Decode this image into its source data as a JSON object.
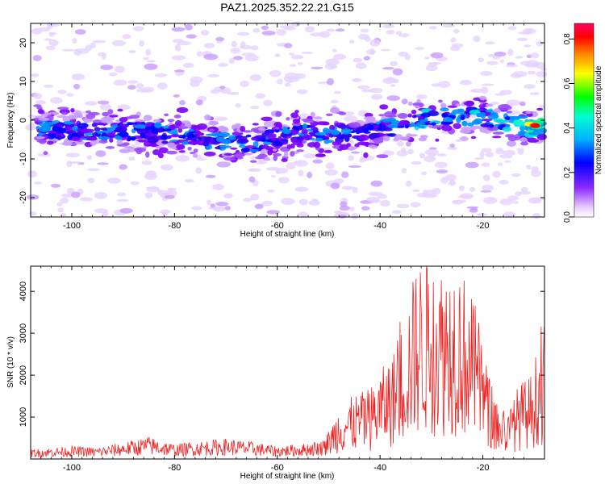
{
  "title": "PAZ1.2025.352.22.21.G15",
  "chart_data": [
    {
      "type": "heatmap",
      "xlabel": "Height of straight line (km)",
      "ylabel": "Frequency (Hz)",
      "xlim": [
        -108,
        -8
      ],
      "ylim": [
        -25,
        25
      ],
      "xticks": [
        -100,
        -80,
        -60,
        -40,
        -20
      ],
      "yticks": [
        -20,
        -10,
        0,
        10,
        20
      ],
      "colorbar": {
        "label": "Normalized spectral amplitude",
        "range": [
          0,
          0.87
        ],
        "ticks": [
          0.0,
          0.2,
          0.4,
          0.6,
          0.8
        ]
      },
      "ridge_description": "band of high amplitude near -2 Hz at low heights rising to about +2 Hz near -30 km, peak amplitude near -10 km",
      "ridge": [
        {
          "x": -106,
          "y": -2
        },
        {
          "x": -95,
          "y": -3
        },
        {
          "x": -85,
          "y": -3
        },
        {
          "x": -75,
          "y": -5
        },
        {
          "x": -65,
          "y": -6
        },
        {
          "x": -55,
          "y": -3
        },
        {
          "x": -45,
          "y": -4
        },
        {
          "x": -38,
          "y": -2
        },
        {
          "x": -30,
          "y": 1
        },
        {
          "x": -20,
          "y": 1
        },
        {
          "x": -10,
          "y": -2
        }
      ]
    },
    {
      "type": "line",
      "xlabel": "Height of straight line (km)",
      "ylabel": "SNR (10 * v/v)",
      "xlim": [
        -108,
        -8
      ],
      "ylim": [
        0,
        4600
      ],
      "xticks": [
        -100,
        -80,
        -60,
        -40,
        -20
      ],
      "yticks": [
        1000,
        2000,
        3000,
        4000
      ],
      "color": "#ee2222",
      "series": [
        {
          "name": "SNR",
          "x": [
            -108,
            -100,
            -95,
            -90,
            -85,
            -80,
            -75,
            -70,
            -65,
            -60,
            -55,
            -51,
            -48,
            -45,
            -42,
            -40,
            -37,
            -35,
            -33,
            -31,
            -29,
            -27,
            -25,
            -23,
            -21,
            -19,
            -17,
            -15,
            -13,
            -11,
            -9,
            -8
          ],
          "y": [
            150,
            200,
            180,
            260,
            350,
            230,
            280,
            320,
            270,
            200,
            240,
            300,
            900,
            1100,
            1200,
            1500,
            1900,
            2600,
            3300,
            3600,
            3300,
            3400,
            3500,
            3000,
            2500,
            1500,
            900,
            800,
            1300,
            1400,
            2000,
            2300
          ]
        }
      ]
    }
  ]
}
